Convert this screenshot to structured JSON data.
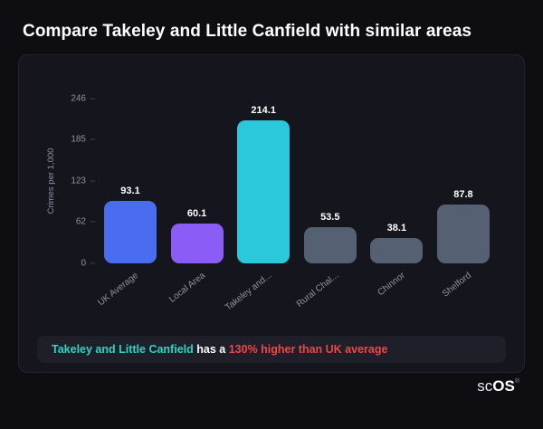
{
  "title": "Compare Takeley and Little Canfield with similar areas",
  "chart_data": {
    "type": "bar",
    "title": "",
    "xlabel": "",
    "ylabel": "Crimes per 1,000",
    "categories": [
      "UK Average",
      "Local Area",
      "Takeley and...",
      "Rural Chal...",
      "Chinnor",
      "Shelford"
    ],
    "values": [
      93.1,
      60.1,
      214.1,
      53.5,
      38.1,
      87.8
    ],
    "colors": [
      "#4a6df0",
      "#8b5cf6",
      "#2bc8dc",
      "#566073",
      "#566073",
      "#566073"
    ],
    "yticks": [
      0,
      62,
      123,
      185,
      246
    ],
    "ylim": [
      0,
      246
    ],
    "grid": false,
    "legend": false
  },
  "note": {
    "area": "Takeley and Little Canfield",
    "middle": " has a ",
    "stat": "130% higher than UK average"
  },
  "logo": {
    "prefix": "sc",
    "suffix": "OS",
    "reg": "®"
  },
  "theme": {
    "background": "#0d0d12",
    "card": "#15151d",
    "note_bg": "#1f1f2a",
    "teal": "#2cd5c4",
    "red": "#ef4646",
    "text": "#ffffff",
    "muted": "#8b93a2"
  }
}
